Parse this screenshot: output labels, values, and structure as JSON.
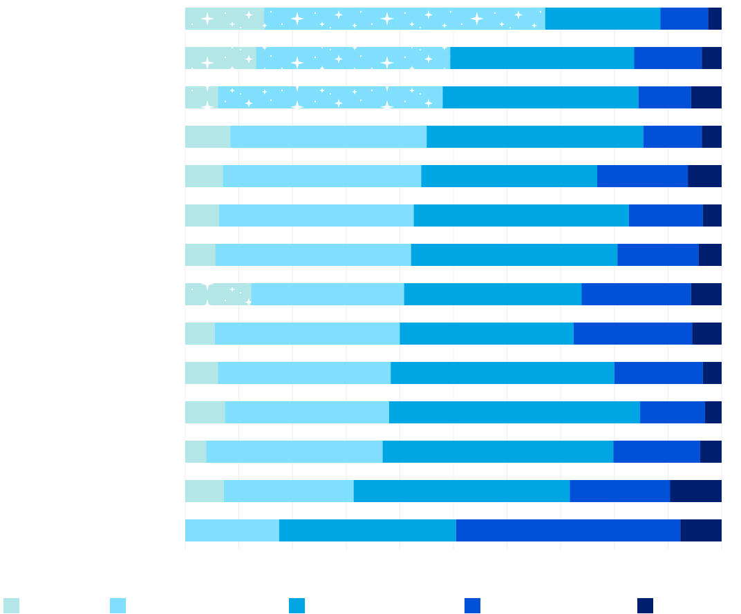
{
  "chart_data": {
    "type": "bar",
    "orientation": "horizontal",
    "stacked": "percent",
    "title": "",
    "xlabel": "",
    "ylabel": "",
    "xlim": [
      0,
      100
    ],
    "grid": true,
    "legend_position": "bottom",
    "categories": [
      "",
      "",
      "",
      "",
      "",
      "",
      "",
      "",
      "",
      "",
      "",
      "",
      "",
      ""
    ],
    "series": [
      {
        "color": "#b3e6e6",
        "values": [
          14.7,
          13.2,
          6.1,
          8.4,
          7.0,
          6.3,
          5.6,
          12.3,
          5.5,
          6.1,
          7.4,
          3.9,
          7.2,
          0.0
        ]
      },
      {
        "color": "#80dffc",
        "values": [
          52.4,
          36.2,
          41.9,
          36.6,
          37.0,
          36.3,
          36.5,
          28.5,
          34.5,
          32.2,
          30.6,
          32.9,
          24.2,
          17.5
        ]
      },
      {
        "color": "#00a6e3",
        "values": [
          21.5,
          34.3,
          36.5,
          40.4,
          32.8,
          40.1,
          38.5,
          33.1,
          32.4,
          41.7,
          46.8,
          43.0,
          40.3,
          33.0
        ]
      },
      {
        "color": "#0050d8",
        "values": [
          8.9,
          12.6,
          9.8,
          10.9,
          16.9,
          13.8,
          15.1,
          20.4,
          22.1,
          16.5,
          12.1,
          16.2,
          18.7,
          41.8
        ]
      },
      {
        "color": "#001f6e",
        "values": [
          2.5,
          3.7,
          5.7,
          3.7,
          6.3,
          3.5,
          4.3,
          5.7,
          5.5,
          3.5,
          3.1,
          4.0,
          9.6,
          7.7
        ]
      }
    ],
    "patterned_segments": [
      {
        "row": 0,
        "series": 0
      },
      {
        "row": 0,
        "series": 1
      },
      {
        "row": 1,
        "series": 0
      },
      {
        "row": 1,
        "series": 1
      },
      {
        "row": 2,
        "series": 0
      },
      {
        "row": 2,
        "series": 1
      },
      {
        "row": 7,
        "series": 0
      }
    ]
  }
}
